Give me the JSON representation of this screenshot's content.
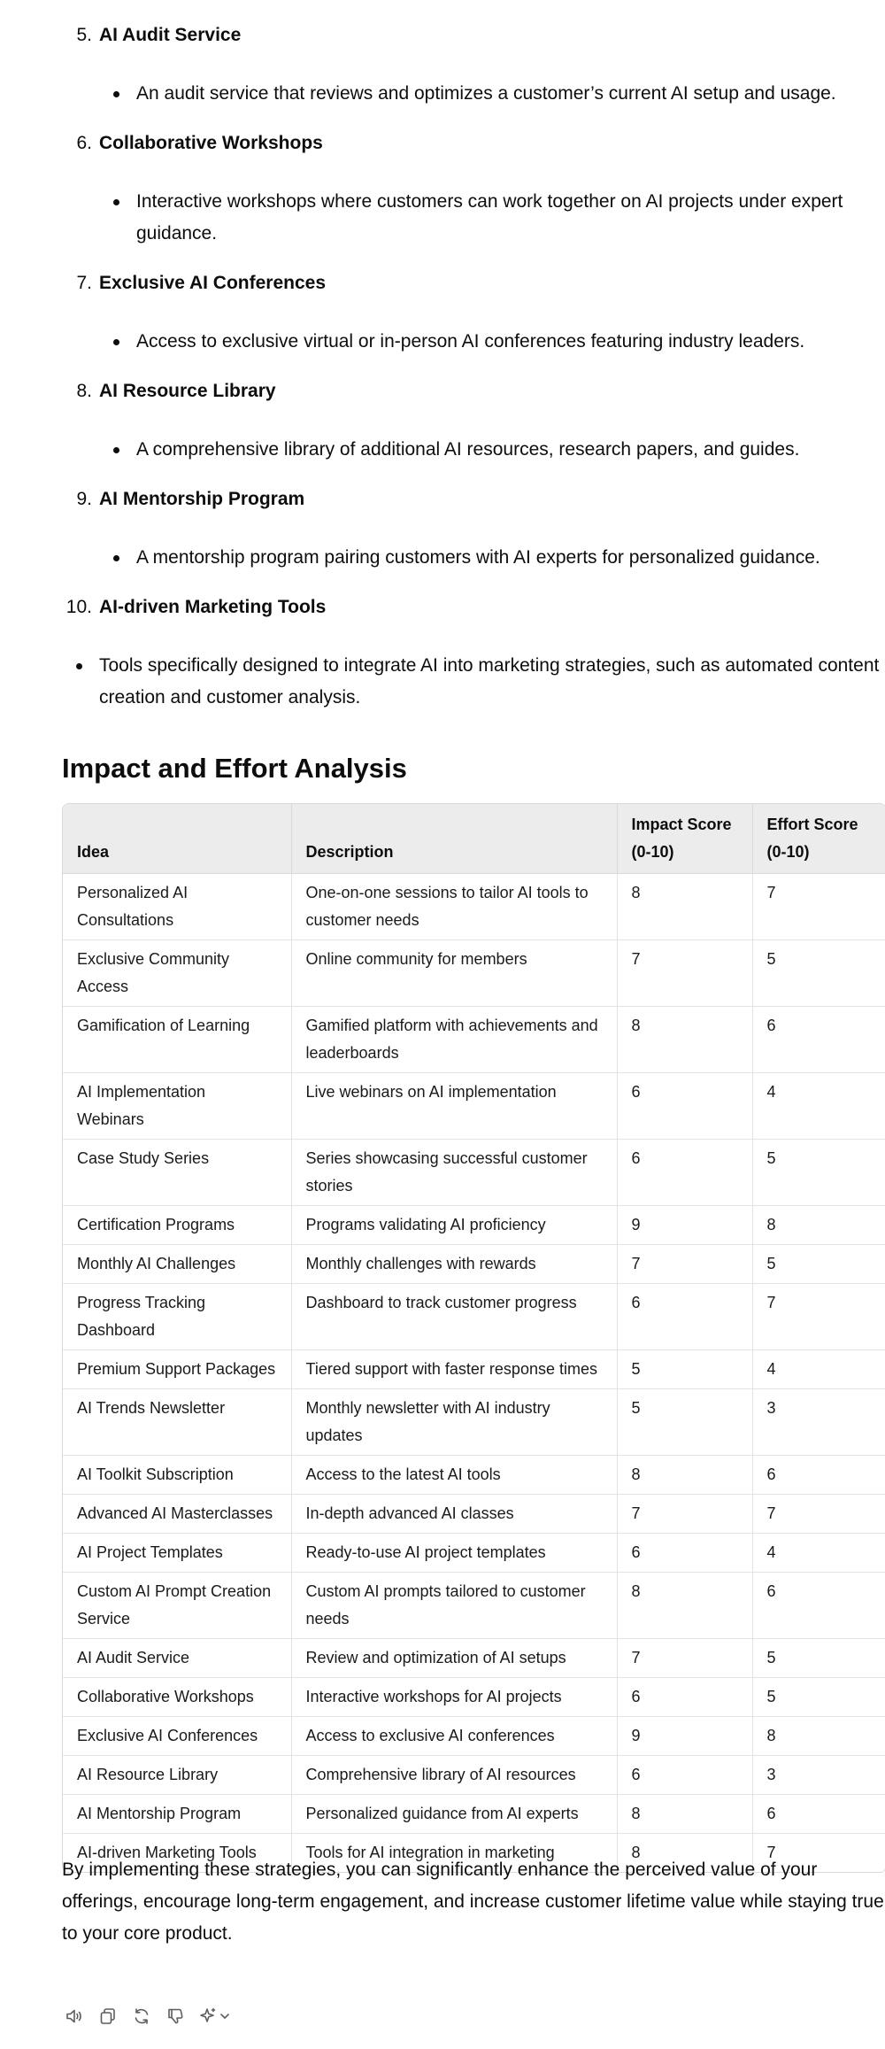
{
  "list": {
    "items": [
      {
        "number": "5.",
        "title": "AI Audit Service",
        "desc": "An audit service that reviews and optimizes a customer’s current AI setup and usage."
      },
      {
        "number": "6.",
        "title": "Collaborative Workshops",
        "desc": "Interactive workshops where customers can work together on AI projects under expert guidance."
      },
      {
        "number": "7.",
        "title": "Exclusive AI Conferences",
        "desc": "Access to exclusive virtual or in-person AI conferences featuring industry leaders."
      },
      {
        "number": "8.",
        "title": "AI Resource Library",
        "desc": "A comprehensive library of additional AI resources, research papers, and guides."
      },
      {
        "number": "9.",
        "title": "AI Mentorship Program",
        "desc": "A mentorship program pairing customers with AI experts for personalized guidance."
      },
      {
        "number": "10.",
        "title": "AI-driven Marketing Tools",
        "desc": "Tools specifically designed to integrate AI into marketing strategies, such as automated content creation and customer analysis."
      }
    ]
  },
  "analysis": {
    "heading": "Impact and Effort Analysis",
    "columns": [
      "Idea",
      "Description",
      "Impact Score (0-10)",
      "Effort Score (0-10)"
    ],
    "rows": [
      [
        "Personalized AI Consultations",
        "One-on-one sessions to tailor AI tools to customer needs",
        "8",
        "7"
      ],
      [
        "Exclusive Community Access",
        "Online community for members",
        "7",
        "5"
      ],
      [
        "Gamification of Learning",
        "Gamified platform with achievements and leaderboards",
        "8",
        "6"
      ],
      [
        "AI Implementation Webinars",
        "Live webinars on AI implementation",
        "6",
        "4"
      ],
      [
        "Case Study Series",
        "Series showcasing successful customer stories",
        "6",
        "5"
      ],
      [
        "Certification Programs",
        "Programs validating AI proficiency",
        "9",
        "8"
      ],
      [
        "Monthly AI Challenges",
        "Monthly challenges with rewards",
        "7",
        "5"
      ],
      [
        "Progress Tracking Dashboard",
        "Dashboard to track customer progress",
        "6",
        "7"
      ],
      [
        "Premium Support Packages",
        "Tiered support with faster response times",
        "5",
        "4"
      ],
      [
        "AI Trends Newsletter",
        "Monthly newsletter with AI industry updates",
        "5",
        "3"
      ],
      [
        "AI Toolkit Subscription",
        "Access to the latest AI tools",
        "8",
        "6"
      ],
      [
        "Advanced AI Masterclasses",
        "In-depth advanced AI classes",
        "7",
        "7"
      ],
      [
        "AI Project Templates",
        "Ready-to-use AI project templates",
        "6",
        "4"
      ],
      [
        "Custom AI Prompt Creation Service",
        "Custom AI prompts tailored to customer needs",
        "8",
        "6"
      ],
      [
        "AI Audit Service",
        "Review and optimization of AI setups",
        "7",
        "5"
      ],
      [
        "Collaborative Workshops",
        "Interactive workshops for AI projects",
        "6",
        "5"
      ],
      [
        "Exclusive AI Conferences",
        "Access to exclusive AI conferences",
        "9",
        "8"
      ],
      [
        "AI Resource Library",
        "Comprehensive library of AI resources",
        "6",
        "3"
      ],
      [
        "AI Mentorship Program",
        "Personalized guidance from AI experts",
        "8",
        "6"
      ],
      [
        "AI-driven Marketing Tools",
        "Tools for AI integration in marketing",
        "8",
        "7"
      ]
    ]
  },
  "closing": "By implementing these strategies, you can significantly enhance the perceived value of your offerings, encourage long-term engagement, and increase customer lifetime value while staying true to your core product.",
  "actions": {
    "icons": [
      "read-aloud-icon",
      "copy-icon",
      "regenerate-icon",
      "thumbs-down-icon",
      "sparkle-model-icon"
    ],
    "icon_color": "#5d5d5d"
  }
}
